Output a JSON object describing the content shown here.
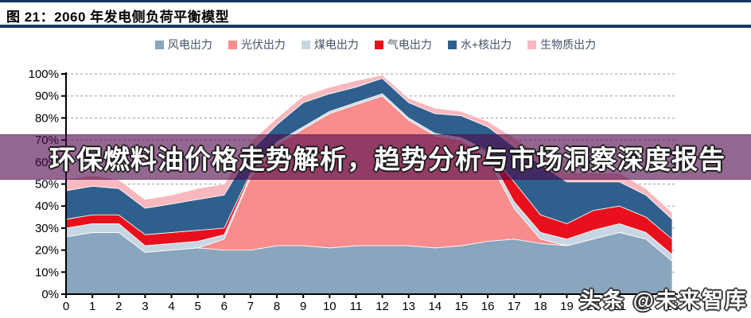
{
  "header": {
    "title": "图 21：2060 年发电侧负荷平衡模型"
  },
  "overlay": {
    "headline": "环保燃料油价格走势解析，趋势分析与市场洞察深度报告"
  },
  "watermark": {
    "text": "头条 @未来智库"
  },
  "chart_data": {
    "type": "area",
    "stacked": true,
    "title": "2060 年发电侧负荷平衡模型",
    "xlabel": "",
    "ylabel": "",
    "x": [
      0,
      1,
      2,
      3,
      4,
      5,
      6,
      7,
      8,
      9,
      10,
      11,
      12,
      13,
      14,
      15,
      16,
      17,
      18,
      19,
      20,
      21,
      22,
      23
    ],
    "series": [
      {
        "name": "风电出力",
        "color": "#8AA5BE",
        "values": [
          26,
          28,
          28,
          19,
          20,
          21,
          20,
          20,
          22,
          22,
          21,
          22,
          22,
          22,
          21,
          22,
          24,
          25,
          23,
          22,
          25,
          28,
          25,
          15
        ]
      },
      {
        "name": "光伏出力",
        "color": "#F98C8C",
        "values": [
          0,
          0,
          0,
          0,
          0,
          0,
          5,
          33,
          46,
          53,
          61,
          64,
          68,
          57,
          51,
          48,
          38,
          14,
          2,
          0,
          0,
          0,
          0,
          0
        ]
      },
      {
        "name": "煤电出力",
        "color": "#C7D6E2",
        "values": [
          4,
          4,
          4,
          3,
          3,
          3,
          2,
          1,
          1,
          1,
          1,
          1,
          1,
          1,
          1,
          1,
          2,
          3,
          3,
          3,
          4,
          4,
          3,
          3
        ]
      },
      {
        "name": "气电出力",
        "color": "#E8101C",
        "values": [
          4,
          4,
          4,
          5,
          5,
          5,
          3,
          1,
          0,
          0,
          0,
          0,
          0,
          0,
          0,
          0,
          1,
          9,
          8,
          7,
          9,
          8,
          7,
          7
        ]
      },
      {
        "name": "水+核出力",
        "color": "#2F5F8C",
        "values": [
          13,
          13,
          12,
          12,
          13,
          14,
          15,
          10,
          8,
          11,
          8,
          7,
          7,
          7,
          9,
          10,
          11,
          16,
          23,
          19,
          13,
          11,
          10,
          9
        ]
      },
      {
        "name": "生物质出力",
        "color": "#F8B8BE",
        "values": [
          5,
          5,
          4,
          4,
          4,
          5,
          5,
          4,
          3,
          3,
          3,
          3,
          1.5,
          2,
          2.5,
          2,
          2.5,
          4,
          4,
          4,
          4,
          4,
          3,
          3
        ]
      }
    ],
    "ylim": [
      0,
      100
    ],
    "yticks": [
      0,
      10,
      20,
      30,
      40,
      50,
      60,
      70,
      80,
      90,
      100
    ],
    "ytick_suffix": "%",
    "grid": "dashed-horizontal",
    "legend_position": "top"
  }
}
